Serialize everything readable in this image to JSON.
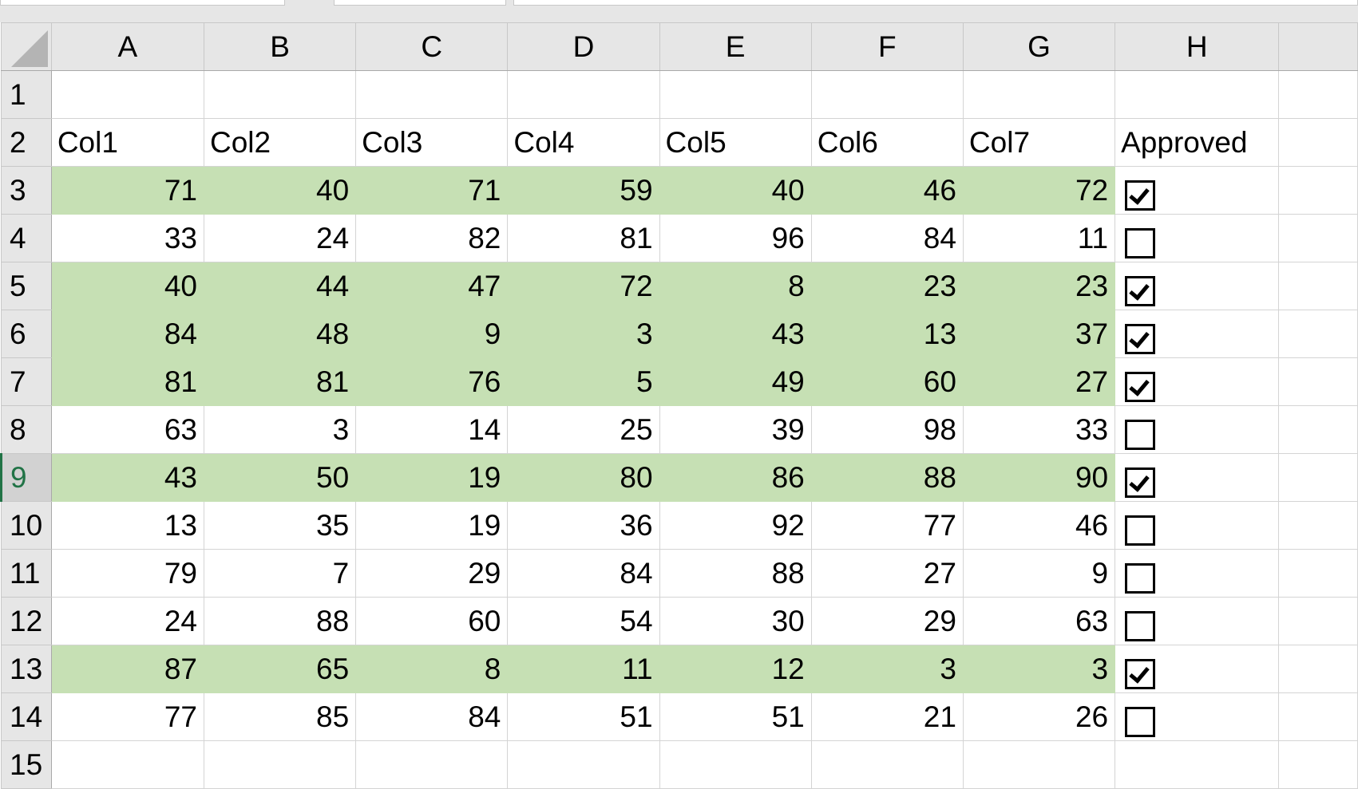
{
  "columns": [
    "A",
    "B",
    "C",
    "D",
    "E",
    "F",
    "G",
    "H"
  ],
  "header_row": [
    "Col1",
    "Col2",
    "Col3",
    "Col4",
    "Col5",
    "Col6",
    "Col7",
    "Approved"
  ],
  "rows": [
    {
      "n": "3",
      "v": [
        71,
        40,
        71,
        59,
        40,
        46,
        72
      ],
      "approved": true
    },
    {
      "n": "4",
      "v": [
        33,
        24,
        82,
        81,
        96,
        84,
        11
      ],
      "approved": false
    },
    {
      "n": "5",
      "v": [
        40,
        44,
        47,
        72,
        8,
        23,
        23
      ],
      "approved": true
    },
    {
      "n": "6",
      "v": [
        84,
        48,
        9,
        3,
        43,
        13,
        37
      ],
      "approved": true
    },
    {
      "n": "7",
      "v": [
        81,
        81,
        76,
        5,
        49,
        60,
        27
      ],
      "approved": true
    },
    {
      "n": "8",
      "v": [
        63,
        3,
        14,
        25,
        39,
        98,
        33
      ],
      "approved": false
    },
    {
      "n": "9",
      "v": [
        43,
        50,
        19,
        80,
        86,
        88,
        90
      ],
      "approved": true
    },
    {
      "n": "10",
      "v": [
        13,
        35,
        19,
        36,
        92,
        77,
        46
      ],
      "approved": false
    },
    {
      "n": "11",
      "v": [
        79,
        7,
        29,
        84,
        88,
        27,
        9
      ],
      "approved": false
    },
    {
      "n": "12",
      "v": [
        24,
        88,
        60,
        54,
        30,
        29,
        63
      ],
      "approved": false
    },
    {
      "n": "13",
      "v": [
        87,
        65,
        8,
        11,
        12,
        3,
        3
      ],
      "approved": true
    },
    {
      "n": "14",
      "v": [
        77,
        85,
        84,
        51,
        51,
        21,
        26
      ],
      "approved": false
    }
  ],
  "row_labels": {
    "r1": "1",
    "r2": "2",
    "r15": "15"
  },
  "selected_row": "9",
  "colors": {
    "highlight": "#c6e0b4",
    "selection": "#217346"
  }
}
